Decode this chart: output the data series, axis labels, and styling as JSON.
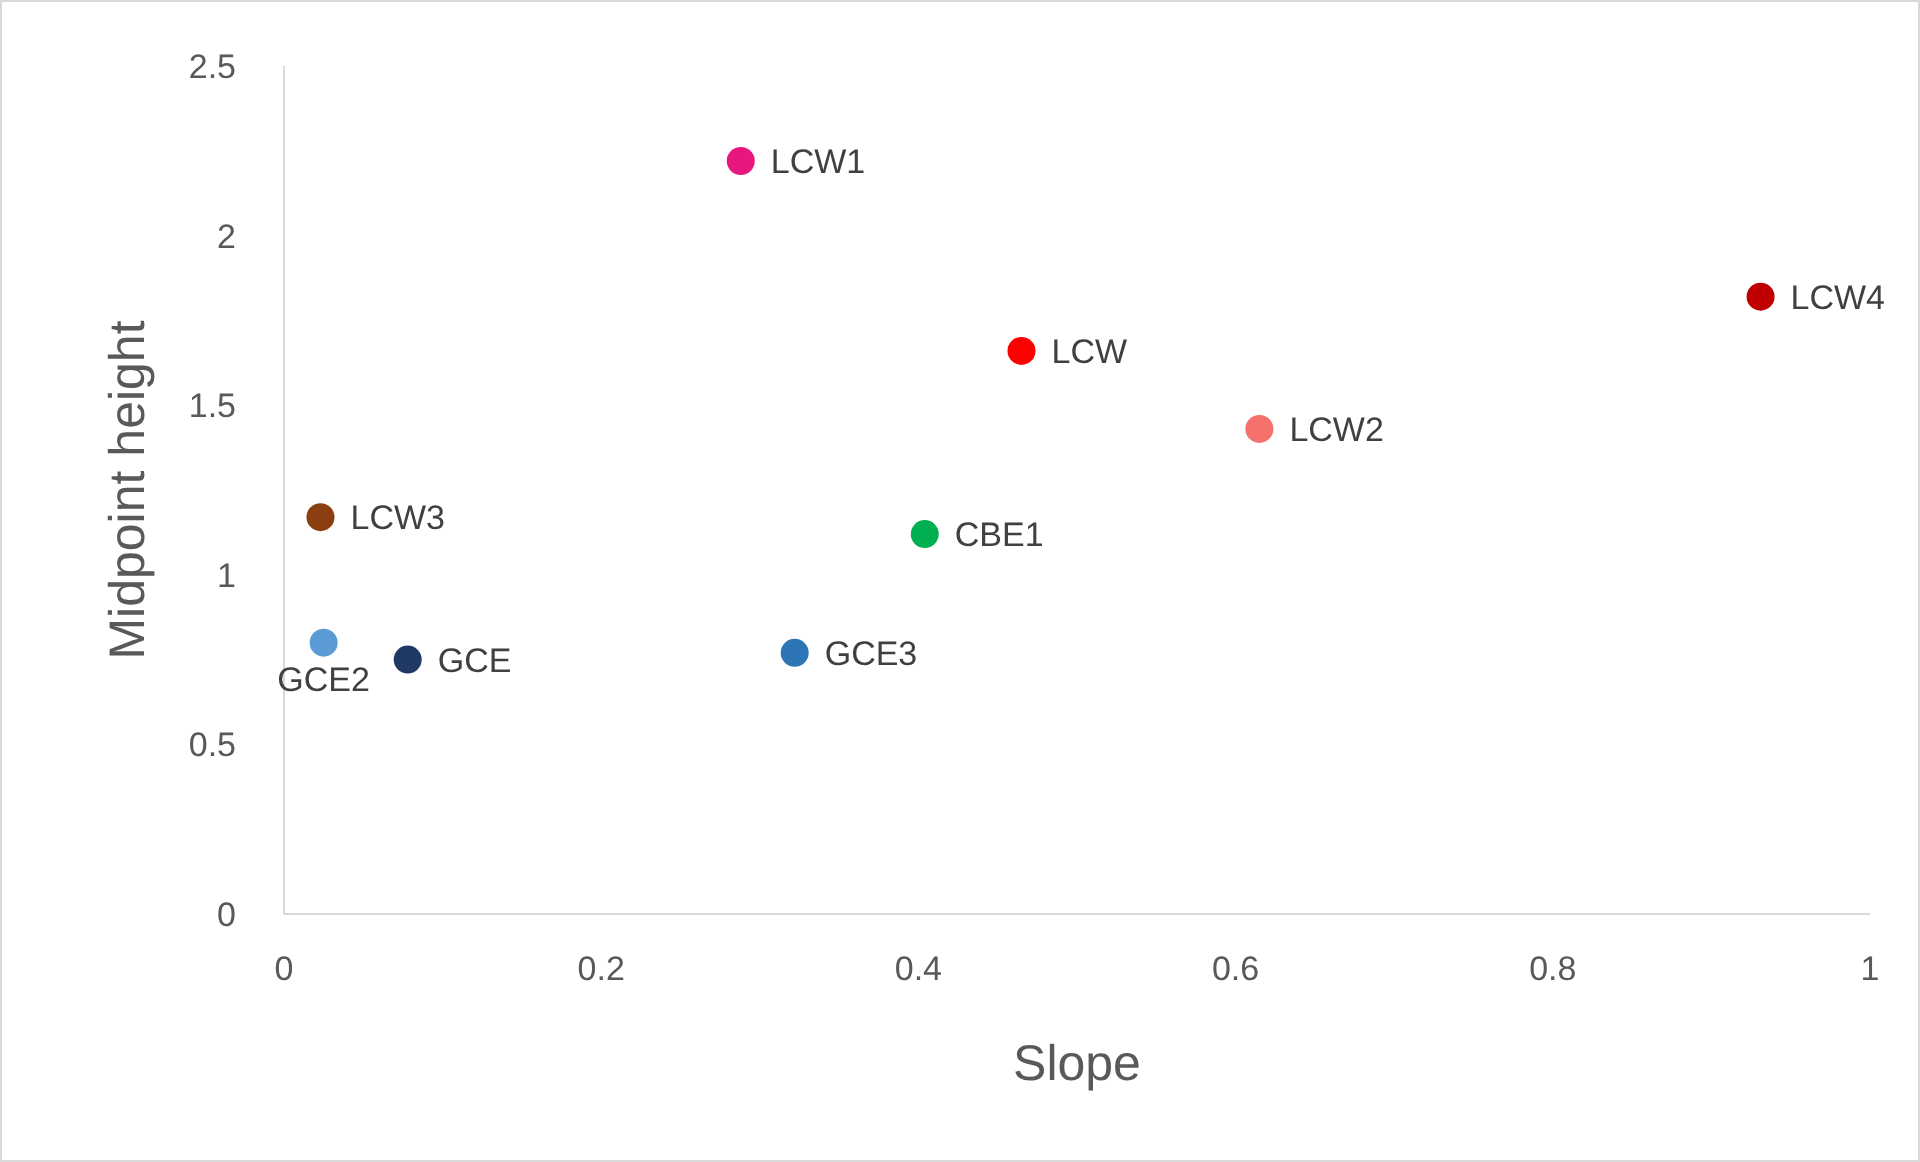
{
  "chart_data": {
    "type": "scatter",
    "xlabel": "Slope",
    "ylabel": "Midpoint height",
    "xlim": [
      0,
      1
    ],
    "xticks": [
      0,
      0.2,
      0.4,
      0.6,
      0.8,
      1
    ],
    "ylim": [
      0,
      2.5
    ],
    "yticks": [
      0,
      0.5,
      1,
      1.5,
      2,
      2.5
    ],
    "marker": "circle",
    "series": [
      {
        "name": "LCW1",
        "color": "#e8177d",
        "x": [
          0.288
        ],
        "values": [
          2.22
        ]
      },
      {
        "name": "LCW4",
        "color": "#c00000",
        "x": [
          0.931
        ],
        "values": [
          1.82
        ]
      },
      {
        "name": "LCW",
        "color": "#ff0000",
        "x": [
          0.465
        ],
        "values": [
          1.66
        ]
      },
      {
        "name": "LCW2",
        "color": "#f4706a",
        "x": [
          0.615
        ],
        "values": [
          1.43
        ]
      },
      {
        "name": "LCW3",
        "color": "#8b3e0f",
        "x": [
          0.023
        ],
        "values": [
          1.17
        ]
      },
      {
        "name": "CBE1",
        "color": "#00b050",
        "x": [
          0.404
        ],
        "values": [
          1.12
        ]
      },
      {
        "name": "GCE2",
        "color": "#5b9bd5",
        "x": [
          0.025
        ],
        "values": [
          0.8
        ]
      },
      {
        "name": "GCE",
        "color": "#1f3864",
        "x": [
          0.078
        ],
        "values": [
          0.75
        ]
      },
      {
        "name": "GCE3",
        "color": "#2e75b6",
        "x": [
          0.322
        ],
        "values": [
          0.77
        ]
      }
    ]
  }
}
